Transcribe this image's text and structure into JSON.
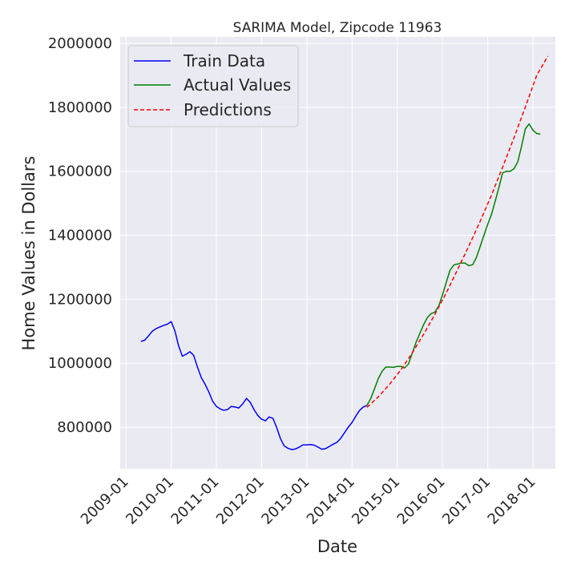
{
  "chart_data": {
    "type": "line",
    "title": "SARIMA Model, Zipcode 11963",
    "xlabel": "Date",
    "ylabel": "Home Values in Dollars",
    "xlim": [
      "2008-11-15",
      "2018-07-01"
    ],
    "ylim": [
      670000,
      2020000
    ],
    "grid": true,
    "legend_position": "top-left",
    "x_ticks": [
      "2009-01",
      "2010-01",
      "2011-01",
      "2012-01",
      "2013-01",
      "2014-01",
      "2015-01",
      "2016-01",
      "2017-01",
      "2018-01"
    ],
    "y_ticks": [
      800000,
      1000000,
      1200000,
      1400000,
      1600000,
      1800000,
      2000000
    ],
    "y_tick_labels": [
      "800000",
      "1000000",
      "1200000",
      "1400000",
      "1600000",
      "1800000",
      "2000000"
    ],
    "series": [
      {
        "name": "Train Data",
        "color": "#0000ff",
        "style": "solid",
        "x": [
          "2009-05",
          "2009-06",
          "2009-07",
          "2009-08",
          "2009-09",
          "2009-10",
          "2009-11",
          "2009-12",
          "2010-01",
          "2010-02",
          "2010-03",
          "2010-04",
          "2010-05",
          "2010-06",
          "2010-07",
          "2010-08",
          "2010-09",
          "2010-10",
          "2010-11",
          "2010-12",
          "2011-01",
          "2011-02",
          "2011-03",
          "2011-04",
          "2011-05",
          "2011-06",
          "2011-07",
          "2011-08",
          "2011-09",
          "2011-10",
          "2011-11",
          "2011-12",
          "2012-01",
          "2012-02",
          "2012-03",
          "2012-04",
          "2012-05",
          "2012-06",
          "2012-07",
          "2012-08",
          "2012-09",
          "2012-10",
          "2012-11",
          "2012-12",
          "2013-01",
          "2013-02",
          "2013-03",
          "2013-04",
          "2013-05",
          "2013-06",
          "2013-07",
          "2013-08",
          "2013-09",
          "2013-10",
          "2013-11",
          "2013-12",
          "2014-01",
          "2014-02",
          "2014-03",
          "2014-04",
          "2014-05"
        ],
        "y": [
          1068000,
          1072000,
          1085000,
          1100000,
          1108000,
          1113000,
          1118000,
          1122000,
          1130000,
          1100000,
          1055000,
          1022000,
          1028000,
          1036000,
          1025000,
          988000,
          955000,
          935000,
          910000,
          882000,
          865000,
          857000,
          853000,
          855000,
          865000,
          863000,
          860000,
          873000,
          890000,
          878000,
          855000,
          837000,
          825000,
          820000,
          832000,
          828000,
          800000,
          765000,
          742000,
          734000,
          730000,
          732000,
          738000,
          745000,
          745000,
          746000,
          744000,
          738000,
          731000,
          733000,
          740000,
          747000,
          753000,
          765000,
          783000,
          800000,
          815000,
          835000,
          852000,
          863000,
          868000
        ]
      },
      {
        "name": "Actual Values",
        "color": "#008000",
        "style": "solid",
        "x": [
          "2014-05",
          "2014-06",
          "2014-07",
          "2014-08",
          "2014-09",
          "2014-10",
          "2014-11",
          "2014-12",
          "2015-01",
          "2015-02",
          "2015-03",
          "2015-04",
          "2015-05",
          "2015-06",
          "2015-07",
          "2015-08",
          "2015-09",
          "2015-10",
          "2015-11",
          "2015-12",
          "2016-01",
          "2016-02",
          "2016-03",
          "2016-04",
          "2016-05",
          "2016-06",
          "2016-07",
          "2016-08",
          "2016-09",
          "2016-10",
          "2016-11",
          "2016-12",
          "2017-01",
          "2017-02",
          "2017-03",
          "2017-04",
          "2017-05",
          "2017-06",
          "2017-07",
          "2017-08",
          "2017-09",
          "2017-10",
          "2017-11",
          "2017-12",
          "2018-01",
          "2018-02",
          "2018-03"
        ],
        "y": [
          868000,
          890000,
          920000,
          952000,
          975000,
          988000,
          988000,
          987000,
          990000,
          990000,
          985000,
          997000,
          1030000,
          1065000,
          1092000,
          1120000,
          1143000,
          1155000,
          1160000,
          1178000,
          1213000,
          1253000,
          1290000,
          1307000,
          1310000,
          1313000,
          1313000,
          1305000,
          1308000,
          1330000,
          1365000,
          1400000,
          1435000,
          1466000,
          1505000,
          1550000,
          1595000,
          1600000,
          1600000,
          1608000,
          1630000,
          1678000,
          1733000,
          1748000,
          1728000,
          1718000,
          1716000
        ]
      },
      {
        "name": "Predictions",
        "color": "#ff0000",
        "style": "dashed",
        "x": [
          "2014-05",
          "2014-08",
          "2014-11",
          "2015-02",
          "2015-05",
          "2015-08",
          "2015-11",
          "2016-02",
          "2016-05",
          "2016-08",
          "2016-11",
          "2017-02",
          "2017-05",
          "2017-08",
          "2017-11",
          "2018-02",
          "2018-05"
        ],
        "y": [
          862000,
          895000,
          935000,
          980000,
          1032000,
          1090000,
          1153000,
          1220000,
          1292000,
          1366000,
          1444000,
          1526000,
          1613000,
          1705000,
          1801000,
          1900000,
          1960000
        ]
      }
    ]
  }
}
